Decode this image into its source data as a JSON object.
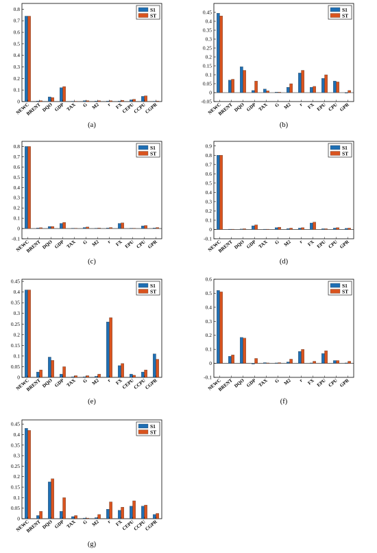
{
  "colors": {
    "S1": "#1f6fb4",
    "ST": "#d9541f"
  },
  "chart_data": [
    {
      "panel_label": "(a)",
      "type": "bar",
      "legend": [
        "S1",
        "ST"
      ],
      "legend_position": "top-right",
      "categories": [
        "NEWC",
        "BRENT",
        "DQO",
        "GDP",
        "TAX",
        "G",
        "M2",
        "r",
        "FX",
        "CEPU",
        "CCPU",
        "CGPR"
      ],
      "series": [
        {
          "name": "S1",
          "values": [
            0.74,
            0.005,
            0.04,
            0.12,
            0.003,
            0.008,
            0.005,
            0.005,
            0.005,
            0.015,
            0.045,
            0.003
          ]
        },
        {
          "name": "ST",
          "values": [
            0.74,
            0.008,
            0.035,
            0.13,
            0.003,
            0.008,
            0.008,
            0.008,
            0.01,
            0.02,
            0.05,
            0.005
          ]
        }
      ],
      "ylim": [
        0,
        0.85
      ],
      "yticks": [
        "0",
        "0.1",
        "0.2",
        "0.3",
        "0.4",
        "0.5",
        "0.6",
        "0.7",
        "0.8"
      ]
    },
    {
      "panel_label": "(b)",
      "type": "bar",
      "legend": [
        "S1",
        "ST"
      ],
      "legend_position": "top-right",
      "categories": [
        "NEWC",
        "BRENT",
        "DQO",
        "GDP",
        "TAX",
        "G",
        "M2",
        "r",
        "FX",
        "EPU",
        "CPU",
        "GPR"
      ],
      "series": [
        {
          "name": "S1",
          "values": [
            0.445,
            0.07,
            0.145,
            0.012,
            0.02,
            0.003,
            0.03,
            0.11,
            0.03,
            0.08,
            0.065,
            -0.003
          ]
        },
        {
          "name": "ST",
          "values": [
            0.43,
            0.075,
            0.125,
            0.065,
            0.01,
            0.003,
            0.05,
            0.125,
            0.035,
            0.1,
            0.06,
            0.012
          ]
        }
      ],
      "ylim": [
        -0.05,
        0.5
      ],
      "yticks": [
        "-0.05",
        "0",
        "0.05",
        "0.1",
        "0.15",
        "0.2",
        "0.25",
        "0.3",
        "0.35",
        "0.4",
        "0.45"
      ]
    },
    {
      "panel_label": "(c)",
      "type": "bar",
      "legend": [
        "S1",
        "ST"
      ],
      "legend_position": "top-right",
      "categories": [
        "NEWC",
        "BRENT",
        "DQO",
        "GDP",
        "TAX",
        "G",
        "M2",
        "r",
        "FX",
        "EPU",
        "CPU",
        "GPR"
      ],
      "series": [
        {
          "name": "S1",
          "values": [
            0.8,
            0.005,
            0.02,
            0.05,
            0.003,
            0.01,
            0.003,
            0.005,
            0.05,
            0.003,
            0.025,
            0.005
          ]
        },
        {
          "name": "ST",
          "values": [
            0.8,
            0.008,
            0.02,
            0.06,
            0.003,
            0.015,
            0.005,
            0.01,
            0.055,
            0.003,
            0.03,
            0.01
          ]
        }
      ],
      "ylim": [
        -0.1,
        0.85
      ],
      "yticks": [
        "-0.1",
        "0",
        "0.1",
        "0.2",
        "0.3",
        "0.4",
        "0.5",
        "0.6",
        "0.7",
        "0.8"
      ]
    },
    {
      "panel_label": "(d)",
      "type": "bar",
      "legend": [
        "S1",
        "ST"
      ],
      "legend_position": "top-right",
      "categories": [
        "NEWC",
        "BRENT",
        "DQO",
        "GDP",
        "TAX",
        "G",
        "M2",
        "r",
        "FX",
        "EPU",
        "CPU",
        "GPR"
      ],
      "series": [
        {
          "name": "S1",
          "values": [
            0.8,
            0.003,
            0.005,
            0.04,
            0.003,
            0.02,
            0.01,
            0.015,
            0.07,
            0.008,
            0.015,
            0.012
          ]
        },
        {
          "name": "ST",
          "values": [
            0.8,
            0.003,
            0.008,
            0.05,
            0.003,
            0.025,
            0.015,
            0.02,
            0.08,
            0.008,
            0.02,
            0.015
          ]
        }
      ],
      "ylim": [
        -0.1,
        0.95
      ],
      "yticks": [
        "-0.1",
        "0",
        "0.1",
        "0.2",
        "0.3",
        "0.4",
        "0.5",
        "0.6",
        "0.7",
        "0.8",
        "0.9"
      ]
    },
    {
      "panel_label": "(e)",
      "type": "bar",
      "legend": [
        "S1",
        "ST"
      ],
      "legend_position": "top-right",
      "categories": [
        "NEWC",
        "BRENT",
        "DQO",
        "GDP",
        "TAX",
        "G",
        "M2",
        "r",
        "FX",
        "CEPU",
        "CCPU",
        "CGPR"
      ],
      "series": [
        {
          "name": "S1",
          "values": [
            0.41,
            0.025,
            0.095,
            0.015,
            0.003,
            0.003,
            0.005,
            0.26,
            0.055,
            0.015,
            0.025,
            0.11
          ]
        },
        {
          "name": "ST",
          "values": [
            0.41,
            0.035,
            0.08,
            0.05,
            0.008,
            0.008,
            0.015,
            0.28,
            0.065,
            0.01,
            0.035,
            0.085
          ]
        }
      ],
      "ylim": [
        0,
        0.46
      ],
      "yticks": [
        "0",
        "0.05",
        "0.1",
        "0.15",
        "0.2",
        "0.25",
        "0.3",
        "0.35",
        "0.4",
        "0.45"
      ]
    },
    {
      "panel_label": "(f)",
      "type": "bar",
      "legend": [
        "S1",
        "ST"
      ],
      "legend_position": "top-right",
      "categories": [
        "NEWC",
        "BRENT",
        "DQO",
        "GDP",
        "TAX",
        "G",
        "M2",
        "r",
        "FX",
        "EPU",
        "CPU",
        "GPR"
      ],
      "series": [
        {
          "name": "S1",
          "values": [
            0.52,
            0.05,
            0.185,
            -0.005,
            0.005,
            0.003,
            0.01,
            0.085,
            0.003,
            0.07,
            0.02,
            0.003
          ]
        },
        {
          "name": "ST",
          "values": [
            0.51,
            0.06,
            0.18,
            0.035,
            0.003,
            0.005,
            0.03,
            0.1,
            0.015,
            0.09,
            0.02,
            0.015
          ]
        }
      ],
      "ylim": [
        -0.1,
        0.6
      ],
      "yticks": [
        "-0.1",
        "0",
        "0.1",
        "0.2",
        "0.3",
        "0.4",
        "0.5",
        "0.6"
      ]
    },
    {
      "panel_label": "(g)",
      "type": "bar",
      "legend": [
        "S1",
        "ST"
      ],
      "legend_position": "top-right",
      "categories": [
        "NEWC",
        "BRENT",
        "DQO",
        "GDP",
        "TAX",
        "G",
        "M2",
        "r",
        "FX",
        "CEPU",
        "CCPU",
        "CGPR"
      ],
      "series": [
        {
          "name": "S1",
          "values": [
            0.43,
            0.015,
            0.175,
            0.035,
            0.01,
            0.003,
            0.005,
            0.045,
            0.04,
            0.06,
            0.06,
            0.02
          ]
        },
        {
          "name": "ST",
          "values": [
            0.42,
            0.035,
            0.19,
            0.1,
            0.015,
            0.003,
            0.02,
            0.08,
            0.055,
            0.085,
            0.065,
            0.025
          ]
        }
      ],
      "ylim": [
        0,
        0.47
      ],
      "yticks": [
        "0",
        "0.05",
        "0.1",
        "0.15",
        "0.2",
        "0.25",
        "0.3",
        "0.35",
        "0.4",
        "0.45"
      ]
    }
  ]
}
